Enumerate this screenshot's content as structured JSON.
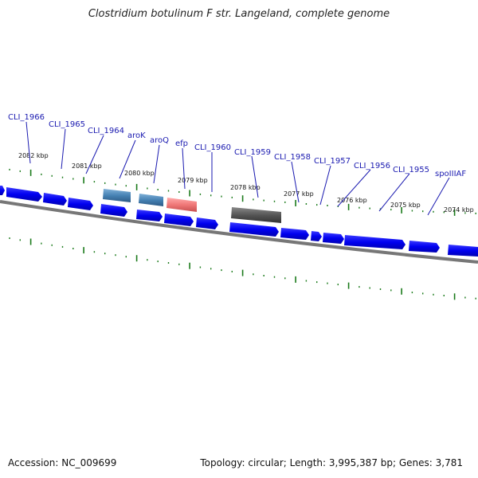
{
  "title": "Clostridium botulinum F str. Langeland, complete genome",
  "accession": "Accession: NC_009699",
  "summary": "Topology: circular; Length: 3,995,387 bp; Genes: 3,781",
  "kbp_labels": [
    "2082 kbp",
    "2081 kbp",
    "2080 kbp",
    "2079 kbp",
    "2078 kbp",
    "2077 kbp",
    "2076 kbp",
    "2075 kbp",
    "2074 kbp"
  ],
  "gene_labels": [
    "CLI_1966",
    "CLI_1965",
    "CLI_1964",
    "aroK",
    "aroQ",
    "efp",
    "CLI_1960",
    "CLI_1959",
    "CLI_1958",
    "CLI_1957",
    "CLI_1956",
    "CLI_1955",
    "spoIIIAF"
  ],
  "colors": {
    "cds": "#0a0af0",
    "arok_feature": "#4682b4",
    "efp_feature": "#f07878",
    "gray_feature": "#555555",
    "backbone": "#888888",
    "ticks": "#1a7a1a",
    "label_lines": "#1a1ab0"
  }
}
